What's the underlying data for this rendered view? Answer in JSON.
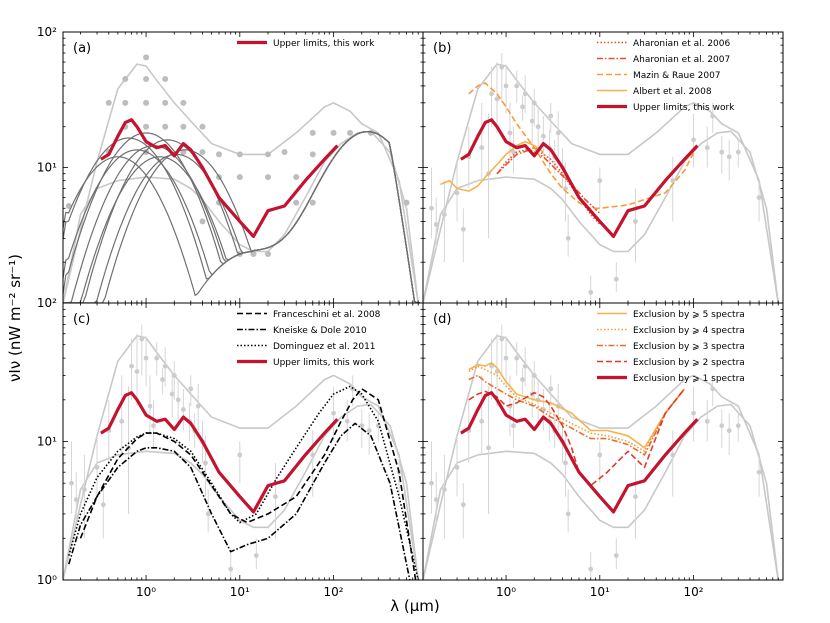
{
  "figure": {
    "xlabel": "λ (μm)",
    "ylabel": "νIν (nW m⁻² sr⁻¹)",
    "x_ticks": [
      "10⁰",
      "10¹",
      "10²"
    ],
    "y_ticks": [
      "10⁰",
      "10¹",
      "10²"
    ]
  },
  "chart_data": [
    {
      "type": "line",
      "panel_label": "(a)",
      "xlim": [
        0.13,
        900
      ],
      "ylim": [
        1,
        100
      ],
      "xscale": "log",
      "yscale": "log",
      "legend_position": "top-right",
      "series": [
        {
          "name": "Upper limits, this work",
          "color": "#c4122f",
          "style": "solid-thick",
          "x": [
            0.33,
            0.4,
            0.5,
            0.6,
            0.7,
            0.8,
            1.0,
            1.3,
            1.6,
            2.0,
            2.5,
            3.0,
            4.0,
            6.0,
            10.0,
            14.0,
            20.0,
            30.0,
            50.0,
            80.0,
            110.0
          ],
          "y": [
            11.5,
            12.5,
            17.0,
            21.5,
            22.5,
            20.0,
            15.5,
            14.0,
            14.5,
            12.2,
            15.0,
            13.5,
            10.0,
            6.0,
            4.0,
            3.1,
            4.8,
            5.2,
            8.0,
            11.5,
            14.5
          ]
        }
      ],
      "envelope": [
        {
          "x": [
            0.13,
            0.2,
            0.3,
            0.5,
            0.8,
            1.0,
            1.3,
            2.0,
            3.0,
            5.0,
            10.0,
            20.0,
            40.0,
            80.0,
            100.0,
            150.0,
            200.0,
            300.0,
            500.0,
            800.0
          ],
          "y": [
            1.0,
            3.5,
            11.0,
            38.0,
            58.0,
            56.0,
            44.0,
            30.0,
            22.0,
            15.0,
            12.5,
            12.5,
            18.0,
            28.0,
            30.0,
            26.0,
            21.0,
            18.0,
            8.0,
            1.0
          ]
        },
        {
          "x": [
            0.13,
            0.2,
            0.3,
            0.5,
            1.0,
            2.0,
            3.0,
            4.0,
            6.0,
            10.0,
            14.0,
            20.0,
            30.0,
            50.0,
            80.0,
            120.0,
            180.0,
            250.0,
            400.0,
            600.0,
            800.0
          ],
          "y": [
            1.0,
            4.5,
            7.0,
            8.0,
            8.5,
            8.2,
            7.0,
            5.8,
            4.0,
            2.7,
            2.4,
            2.4,
            3.2,
            6.0,
            11.0,
            15.0,
            18.0,
            18.5,
            13.0,
            5.0,
            1.0
          ]
        }
      ],
      "grey_points": [
        {
          "x": 1.0,
          "y": 65
        },
        {
          "x": 0.6,
          "y": 45
        },
        {
          "x": 1.0,
          "y": 45
        },
        {
          "x": 1.6,
          "y": 45
        },
        {
          "x": 0.4,
          "y": 30
        },
        {
          "x": 0.6,
          "y": 30
        },
        {
          "x": 1.0,
          "y": 30
        },
        {
          "x": 1.6,
          "y": 30
        },
        {
          "x": 2.5,
          "y": 30
        },
        {
          "x": 0.6,
          "y": 20
        },
        {
          "x": 1.0,
          "y": 20
        },
        {
          "x": 1.6,
          "y": 20
        },
        {
          "x": 2.5,
          "y": 20
        },
        {
          "x": 4.0,
          "y": 20
        },
        {
          "x": 0.4,
          "y": 13
        },
        {
          "x": 1.0,
          "y": 13
        },
        {
          "x": 2.5,
          "y": 13
        },
        {
          "x": 4.0,
          "y": 13
        },
        {
          "x": 6.0,
          "y": 12.5
        },
        {
          "x": 10.0,
          "y": 12.5
        },
        {
          "x": 20.0,
          "y": 12.5
        },
        {
          "x": 6.0,
          "y": 8.5
        },
        {
          "x": 10.0,
          "y": 8.5
        },
        {
          "x": 20.0,
          "y": 8.5
        },
        {
          "x": 40.0,
          "y": 8.5
        },
        {
          "x": 6.0,
          "y": 5.5
        },
        {
          "x": 40.0,
          "y": 5.5
        },
        {
          "x": 60.0,
          "y": 5.5
        },
        {
          "x": 60.0,
          "y": 12.5
        },
        {
          "x": 60.0,
          "y": 18
        },
        {
          "x": 100.0,
          "y": 18
        },
        {
          "x": 150.0,
          "y": 18
        },
        {
          "x": 250.0,
          "y": 18
        },
        {
          "x": 0.15,
          "y": 5.2
        },
        {
          "x": 600.0,
          "y": 5.5
        },
        {
          "x": 10.0,
          "y": 2.3
        },
        {
          "x": 14.0,
          "y": 2.3
        },
        {
          "x": 20.0,
          "y": 2.3
        },
        {
          "x": 4.0,
          "y": 4.0
        },
        {
          "x": 30.0,
          "y": 13
        }
      ],
      "bump_curves": [
        {
          "peak_x": 0.5,
          "peak_y": 12.0
        },
        {
          "peak_x": 0.65,
          "peak_y": 16.5
        },
        {
          "peak_x": 0.8,
          "peak_y": 13.5
        },
        {
          "peak_x": 1.0,
          "peak_y": 18.0
        },
        {
          "peak_x": 1.2,
          "peak_y": 14.5
        },
        {
          "peak_x": 1.4,
          "peak_y": 12.0
        },
        {
          "peak_x": 1.7,
          "peak_y": 16.0
        },
        {
          "peak_x": 2.1,
          "peak_y": 12.5
        },
        {
          "peak_x": 2.6,
          "peak_y": 13.5
        }
      ]
    },
    {
      "type": "line",
      "panel_label": "(b)",
      "xlim": [
        0.13,
        900
      ],
      "ylim": [
        1,
        100
      ],
      "xscale": "log",
      "yscale": "log",
      "legend_position": "top-right",
      "series": [
        {
          "name": "Aharonian et al. 2006",
          "color": "#e8502c",
          "style": "dotted",
          "x": [
            0.8,
            1.0,
            1.3,
            2.0,
            3.0,
            4.0,
            6.0,
            8.0,
            10.0
          ],
          "y": [
            9.0,
            11.0,
            13.0,
            14.0,
            11.5,
            9.0,
            6.0,
            4.5,
            3.8
          ]
        },
        {
          "name": "Aharonian et al. 2007",
          "color": "#e8502c",
          "style": "dash-dot",
          "x": [
            0.8,
            1.0,
            1.3,
            1.8,
            2.5,
            3.5,
            5.0,
            7.0,
            10.0
          ],
          "y": [
            9.0,
            10.5,
            12.5,
            13.5,
            12.0,
            9.5,
            7.5,
            5.8,
            4.6
          ]
        },
        {
          "name": "Mazin & Raue 2007",
          "color": "#f59e38",
          "style": "dashed",
          "x": [
            0.4,
            0.5,
            0.6,
            0.8,
            1.0,
            1.3,
            2.0,
            3.0,
            4.0,
            6.0,
            8.0,
            10.0,
            20.0,
            50.0,
            80.0,
            110.0
          ],
          "y": [
            35.0,
            40.0,
            42.0,
            35.0,
            28.0,
            21.0,
            14.0,
            9.0,
            7.0,
            5.5,
            5.0,
            5.0,
            5.3,
            6.5,
            9.5,
            14.5
          ]
        },
        {
          "name": "Albert et al. 2008",
          "color": "#f7b24d",
          "style": "solid",
          "x": [
            0.2,
            0.25,
            0.3,
            0.4,
            0.5,
            0.6,
            0.8,
            1.0,
            1.3,
            1.6,
            2.0,
            2.5
          ],
          "y": [
            7.5,
            8.0,
            7.0,
            6.7,
            7.3,
            8.5,
            10.5,
            12.5,
            14.5,
            15.5,
            14.5,
            13.0
          ]
        },
        {
          "name": "Upper limits, this work",
          "color": "#c4122f",
          "style": "solid-thick",
          "x": [
            0.33,
            0.4,
            0.5,
            0.6,
            0.7,
            0.8,
            1.0,
            1.3,
            1.6,
            2.0,
            2.5,
            3.0,
            4.0,
            6.0,
            10.0,
            14.0,
            20.0,
            30.0,
            50.0,
            80.0,
            110.0
          ],
          "y": [
            11.5,
            12.5,
            17.0,
            21.5,
            22.5,
            20.0,
            15.5,
            14.0,
            14.5,
            12.2,
            15.0,
            13.5,
            10.0,
            6.0,
            4.0,
            3.1,
            4.8,
            5.2,
            8.0,
            11.5,
            14.5
          ]
        }
      ]
    },
    {
      "type": "line",
      "panel_label": "(c)",
      "xlim": [
        0.13,
        900
      ],
      "ylim": [
        1,
        100
      ],
      "xscale": "log",
      "yscale": "log",
      "legend_position": "top-right",
      "series": [
        {
          "name": "Franceschini et al. 2008",
          "color": "#000000",
          "style": "dashed",
          "x": [
            0.2,
            0.3,
            0.5,
            0.8,
            1.0,
            1.3,
            2.0,
            3.0,
            5.0,
            8.0,
            12.0,
            20.0,
            40.0,
            80.0,
            120.0,
            160.0,
            200.0,
            300.0,
            500.0,
            750.0
          ],
          "y": [
            2.0,
            4.0,
            7.5,
            10.5,
            11.5,
            11.5,
            10.0,
            8.0,
            4.8,
            3.0,
            2.6,
            3.0,
            4.0,
            8.0,
            14.0,
            20.0,
            24.0,
            20.0,
            6.0,
            1.0
          ]
        },
        {
          "name": "Kneiske & Dole 2010",
          "color": "#000000",
          "style": "dash-dot",
          "x": [
            0.15,
            0.2,
            0.3,
            0.5,
            0.8,
            1.0,
            1.3,
            2.0,
            3.0,
            5.0,
            8.0,
            12.0,
            20.0,
            40.0,
            80.0,
            120.0,
            170.0,
            250.0,
            400.0,
            650.0
          ],
          "y": [
            1.3,
            2.5,
            4.0,
            6.5,
            8.5,
            9.0,
            9.0,
            8.5,
            6.5,
            3.0,
            1.6,
            1.8,
            2.0,
            3.0,
            7.0,
            11.0,
            13.5,
            11.0,
            5.0,
            1.0
          ]
        },
        {
          "name": "Dominguez et al. 2011",
          "color": "#000000",
          "style": "dotted",
          "x": [
            0.15,
            0.2,
            0.3,
            0.5,
            0.8,
            1.0,
            1.3,
            2.0,
            3.0,
            5.0,
            8.0,
            10.0,
            15.0,
            25.0,
            40.0,
            70.0,
            100.0,
            150.0,
            200.0,
            300.0,
            500.0,
            800.0
          ],
          "y": [
            1.5,
            3.0,
            5.5,
            8.5,
            10.8,
            11.5,
            11.5,
            10.5,
            8.5,
            5.0,
            3.0,
            2.6,
            3.0,
            5.5,
            9.0,
            16.0,
            22.0,
            25.0,
            22.0,
            14.0,
            4.0,
            1.0
          ]
        },
        {
          "name": "Upper limits, this work",
          "color": "#c4122f",
          "style": "solid-thick",
          "x": [
            0.33,
            0.4,
            0.5,
            0.6,
            0.7,
            0.8,
            1.0,
            1.3,
            1.6,
            2.0,
            2.5,
            3.0,
            4.0,
            6.0,
            10.0,
            14.0,
            20.0,
            30.0,
            50.0,
            80.0,
            110.0
          ],
          "y": [
            11.5,
            12.5,
            17.0,
            21.5,
            22.5,
            20.0,
            15.5,
            14.0,
            14.5,
            12.2,
            15.0,
            13.5,
            10.0,
            6.0,
            4.0,
            3.1,
            4.8,
            5.2,
            8.0,
            11.5,
            14.5
          ]
        }
      ]
    },
    {
      "type": "line",
      "panel_label": "(d)",
      "xlim": [
        0.13,
        900
      ],
      "ylim": [
        1,
        100
      ],
      "xscale": "log",
      "yscale": "log",
      "legend_position": "top-right",
      "series": [
        {
          "name": "Exclusion by ⩾ 5 spectra",
          "color": "#f7b24d",
          "style": "solid",
          "x": [
            0.4,
            0.5,
            0.6,
            0.7,
            0.8,
            1.0,
            1.3,
            2.0,
            3.0,
            5.0,
            8.0,
            12.0,
            20.0,
            30.0,
            50.0,
            80.0
          ],
          "y": [
            33.0,
            36.0,
            35.0,
            37.0,
            34.0,
            27.0,
            22.0,
            20.0,
            19.0,
            16.0,
            12.0,
            12.0,
            11.0,
            9.0,
            16.0,
            24.0
          ]
        },
        {
          "name": "Exclusion by ⩾ 4 spectra",
          "color": "#f59e38",
          "style": "dotted",
          "x": [
            0.4,
            0.5,
            0.6,
            0.8,
            1.0,
            1.3,
            2.0,
            3.0,
            5.0,
            8.0,
            12.0,
            20.0,
            30.0,
            50.0,
            80.0
          ],
          "y": [
            32.0,
            35.0,
            33.0,
            30.0,
            25.0,
            21.0,
            18.5,
            16.0,
            13.5,
            11.5,
            11.0,
            10.0,
            8.5,
            16.0,
            24.0
          ]
        },
        {
          "name": "Exclusion by ⩾ 3 spectra",
          "color": "#ec6d2e",
          "style": "dash-dot",
          "x": [
            0.4,
            0.5,
            0.6,
            0.8,
            1.0,
            1.3,
            2.0,
            3.0,
            5.0,
            8.0,
            12.0,
            20.0,
            30.0,
            50.0,
            80.0
          ],
          "y": [
            28.0,
            30.0,
            27.0,
            24.0,
            22.0,
            20.0,
            18.0,
            15.0,
            12.5,
            10.5,
            10.5,
            9.5,
            8.0,
            16.0,
            24.0
          ]
        },
        {
          "name": "Exclusion by ⩾ 2 spectra",
          "color": "#e23a2a",
          "style": "dashed",
          "x": [
            0.4,
            0.5,
            0.6,
            0.8,
            1.0,
            1.3,
            2.0,
            2.5,
            3.0,
            4.0,
            5.0,
            6.0,
            8.0,
            12.0,
            20.0,
            30.0,
            50.0,
            80.0
          ],
          "y": [
            20.0,
            22.0,
            23.0,
            21.0,
            18.0,
            19.0,
            22.5,
            21.0,
            18.0,
            13.0,
            9.0,
            6.0,
            4.8,
            6.0,
            8.5,
            6.5,
            16.0,
            24.0
          ]
        },
        {
          "name": "Exclusion by ⩾ 1 spectra",
          "color": "#c4122f",
          "style": "solid-thick",
          "x": [
            0.33,
            0.4,
            0.5,
            0.6,
            0.7,
            0.8,
            1.0,
            1.3,
            1.6,
            2.0,
            2.5,
            3.0,
            4.0,
            6.0,
            10.0,
            14.0,
            20.0,
            30.0,
            50.0,
            80.0,
            110.0
          ],
          "y": [
            11.5,
            12.5,
            17.0,
            21.5,
            22.5,
            20.0,
            15.5,
            14.0,
            14.5,
            12.2,
            15.0,
            13.5,
            10.0,
            6.0,
            4.0,
            3.1,
            4.8,
            5.2,
            8.0,
            11.5,
            14.5
          ]
        }
      ]
    }
  ]
}
